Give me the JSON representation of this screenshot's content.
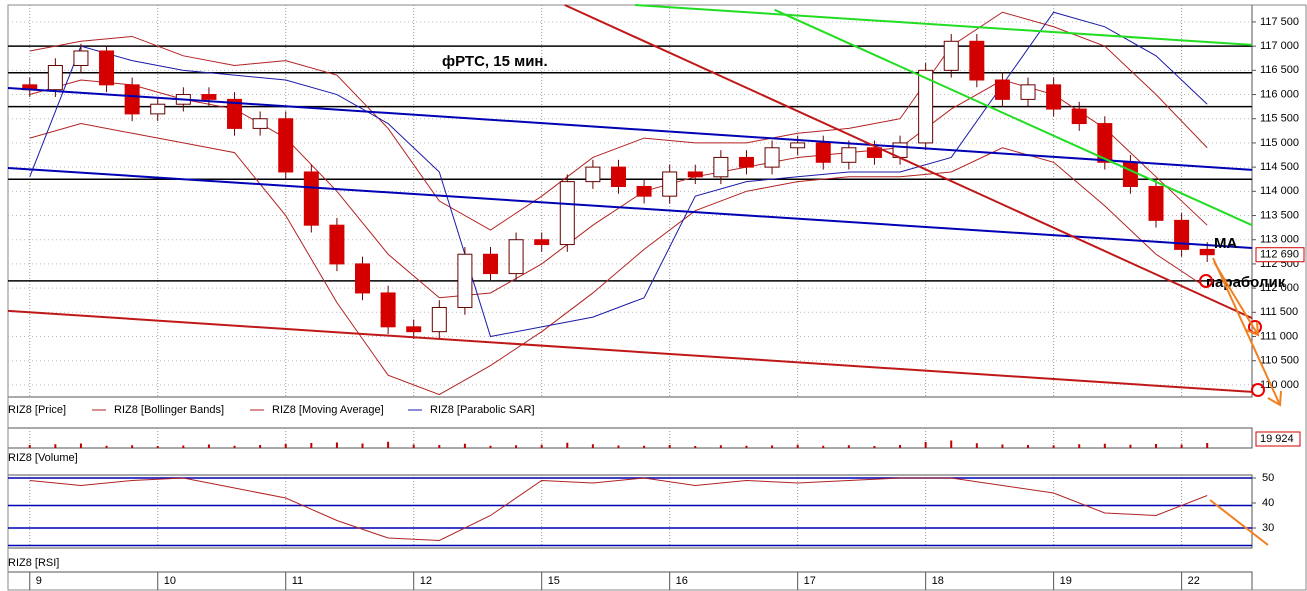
{
  "chart_data": [
    {
      "type": "candlestick",
      "title": "фРТС, 15 мин.",
      "xlim": [
        -0.17,
        9.55
      ],
      "xticks": [
        {
          "value": 0,
          "label": "9"
        },
        {
          "value": 1,
          "label": "10"
        },
        {
          "value": 2,
          "label": "11"
        },
        {
          "value": 3,
          "label": "12"
        },
        {
          "value": 4,
          "label": "15"
        },
        {
          "value": 5,
          "label": "16"
        },
        {
          "value": 6,
          "label": "17"
        },
        {
          "value": 7,
          "label": "18"
        },
        {
          "value": 8,
          "label": "19"
        },
        {
          "value": 9,
          "label": "22"
        }
      ],
      "ylim": [
        109750,
        117850
      ],
      "yticks": [
        {
          "value": 110000,
          "label": "110 000"
        },
        {
          "value": 110500,
          "label": "110 500"
        },
        {
          "value": 111000,
          "label": "111 000"
        },
        {
          "value": 111500,
          "label": "111 500"
        },
        {
          "value": 112000,
          "label": "112 000"
        },
        {
          "value": 112500,
          "label": "112 500"
        },
        {
          "value": 113000,
          "label": "113 000"
        },
        {
          "value": 113500,
          "label": "113 500"
        },
        {
          "value": 114000,
          "label": "114 000"
        },
        {
          "value": 114500,
          "label": "114 500"
        },
        {
          "value": 115000,
          "label": "115 000"
        },
        {
          "value": 115500,
          "label": "115 500"
        },
        {
          "value": 116000,
          "label": "116 000"
        },
        {
          "value": 116500,
          "label": "116 500"
        },
        {
          "value": 117000,
          "label": "117 000"
        },
        {
          "value": 117500,
          "label": "117 500"
        }
      ],
      "grid": true,
      "series": [
        {
          "name": "RIZ8 [Price]",
          "up_color": "#ffffff",
          "down_color": "#d40000",
          "x": [
            0,
            0.2,
            0.4,
            0.6,
            0.8,
            1,
            1.2,
            1.4,
            1.6,
            1.8,
            2,
            2.2,
            2.4,
            2.6,
            2.8,
            3,
            3.2,
            3.4,
            3.6,
            3.8,
            4,
            4.2,
            4.4,
            4.6,
            4.8,
            5,
            5.2,
            5.4,
            5.6,
            5.8,
            6,
            6.2,
            6.4,
            6.6,
            6.8,
            7,
            7.2,
            7.4,
            7.6,
            7.8,
            8,
            8.2,
            8.4,
            8.6,
            8.8,
            9,
            9.2
          ],
          "open": [
            116200,
            116100,
            116600,
            116900,
            116200,
            115600,
            115800,
            116000,
            115900,
            115300,
            115500,
            114400,
            113300,
            112500,
            111900,
            111200,
            111100,
            111600,
            112700,
            112300,
            113000,
            112900,
            114200,
            114500,
            114100,
            113900,
            114400,
            114300,
            114700,
            114500,
            114900,
            115000,
            114600,
            114900,
            114700,
            115000,
            116500,
            117100,
            116300,
            115900,
            116200,
            115700,
            115400,
            114600,
            114100,
            113400,
            112800
          ],
          "high": [
            116350,
            116750,
            117050,
            117000,
            116350,
            115950,
            116150,
            116150,
            116050,
            115650,
            115650,
            114550,
            113450,
            112650,
            112050,
            111350,
            111750,
            112850,
            112850,
            113150,
            113150,
            114350,
            114650,
            114650,
            114250,
            114550,
            114550,
            114850,
            114850,
            115050,
            115150,
            115150,
            115050,
            115050,
            115150,
            116650,
            117250,
            117250,
            116450,
            116350,
            116350,
            115850,
            115550,
            114750,
            114250,
            113550,
            112950
          ],
          "low": [
            115950,
            115950,
            116450,
            116050,
            115450,
            115450,
            115650,
            115750,
            115150,
            115150,
            114250,
            113150,
            112350,
            111750,
            111050,
            110950,
            110950,
            111450,
            112150,
            112150,
            112750,
            112750,
            114050,
            113950,
            113750,
            113750,
            114150,
            114150,
            114350,
            114350,
            114750,
            114450,
            114450,
            114550,
            114550,
            114850,
            116350,
            116150,
            115750,
            115750,
            115550,
            115250,
            114450,
            113950,
            113250,
            112650,
            112540
          ],
          "close": [
            116100,
            116600,
            116900,
            116200,
            115600,
            115800,
            116000,
            115900,
            115300,
            115500,
            114400,
            113300,
            112500,
            111900,
            111200,
            111100,
            111600,
            112700,
            112300,
            113000,
            112900,
            114200,
            114500,
            114100,
            113900,
            114400,
            114300,
            114700,
            114500,
            114900,
            115000,
            114600,
            114900,
            114700,
            115000,
            116500,
            117100,
            116300,
            115900,
            116200,
            115700,
            115400,
            114600,
            114100,
            113400,
            112800,
            112690
          ],
          "close_labels": [
            null,
            null,
            null,
            null,
            null,
            null,
            null,
            null,
            null,
            null,
            null,
            null,
            null,
            null,
            null,
            null,
            null,
            null,
            null,
            null,
            null,
            null,
            null,
            null,
            null,
            null,
            null,
            null,
            null,
            null,
            null,
            null,
            null,
            null,
            null,
            null,
            null,
            null,
            null,
            null,
            null,
            null,
            null,
            null,
            null,
            null,
            "112 690"
          ]
        },
        {
          "name": "RIZ8 [Bollinger Bands]",
          "color": "#b22222",
          "x": [
            0,
            0.4,
            0.8,
            1.2,
            1.6,
            2,
            2.4,
            2.8,
            3.2,
            3.6,
            4,
            4.4,
            4.8,
            5.2,
            5.6,
            6,
            6.4,
            6.8,
            7.2,
            7.6,
            8,
            8.4,
            8.8,
            9.2
          ],
          "upper": [
            116900,
            117100,
            117200,
            116800,
            116600,
            116700,
            116400,
            115300,
            113800,
            113200,
            113900,
            114700,
            115100,
            115000,
            115000,
            115200,
            115300,
            115500,
            117000,
            117700,
            117400,
            117000,
            116000,
            114900
          ],
          "lower": [
            115100,
            115400,
            115200,
            115000,
            114800,
            113500,
            111700,
            110200,
            109800,
            110400,
            111100,
            111900,
            112800,
            113600,
            114000,
            114200,
            114300,
            114300,
            114400,
            114900,
            114600,
            113700,
            112700,
            112000
          ]
        },
        {
          "name": "RIZ8 [Moving Average]",
          "color": "#b22222",
          "x": [
            0,
            0.4,
            0.8,
            1.2,
            1.6,
            2,
            2.4,
            2.8,
            3.2,
            3.6,
            4,
            4.4,
            4.8,
            5.2,
            5.6,
            6,
            6.4,
            6.8,
            7.2,
            7.6,
            8,
            8.4,
            8.8,
            9.2
          ],
          "values": [
            116000,
            116300,
            116200,
            115900,
            115700,
            115100,
            114000,
            112700,
            111800,
            111900,
            112500,
            113300,
            114000,
            114300,
            114500,
            114700,
            114800,
            114900,
            115700,
            116300,
            116000,
            115300,
            114300,
            113300
          ]
        },
        {
          "name": "RIZ8 [Parabolic SAR]",
          "color": "#1a1aa8",
          "x": [
            0,
            0.4,
            0.8,
            1.2,
            1.6,
            2,
            2.4,
            2.8,
            3.2,
            3.6,
            4,
            4.4,
            4.8,
            5.2,
            5.6,
            6,
            6.4,
            6.8,
            7.2,
            7.6,
            8,
            8.4,
            8.8,
            9.2
          ],
          "values": [
            114300,
            117000,
            116700,
            116500,
            116400,
            116300,
            116000,
            115400,
            114400,
            111000,
            111200,
            111400,
            111800,
            113900,
            114200,
            114300,
            114400,
            114400,
            114700,
            116200,
            117700,
            117400,
            116800,
            115800
          ]
        }
      ],
      "levels": [
        117000,
        116450,
        115750,
        114250,
        112150
      ],
      "level_color": "#000000",
      "trendlines": [
        {
          "color": "#0000b4",
          "x": [
            -0.17,
            9.55
          ],
          "y": [
            116136,
            114442
          ]
        },
        {
          "color": "#0000b4",
          "x": [
            -0.17,
            9.55
          ],
          "y": [
            114483,
            112830
          ]
        },
        {
          "color": "#c01818",
          "x": [
            4.18,
            9.55
          ],
          "y": [
            117850,
            111380
          ]
        },
        {
          "color": "#c01818",
          "x": [
            -0.17,
            9.55
          ],
          "y": [
            111530,
            109855
          ]
        },
        {
          "color": "#22dd22",
          "x": [
            4.73,
            9.55
          ],
          "y": [
            117850,
            117025
          ]
        },
        {
          "color": "#22dd22",
          "x": [
            5.82,
            9.55
          ],
          "y": [
            117750,
            113300
          ]
        }
      ],
      "annotations": [
        "МА",
        "параболик"
      ]
    },
    {
      "type": "bar",
      "ylim": [
        0,
        80000
      ],
      "series": [
        {
          "name": "RIZ8 [Volume]",
          "color": "#c00000",
          "x": [
            0,
            0.2,
            0.4,
            0.6,
            0.8,
            1,
            1.2,
            1.4,
            1.6,
            1.8,
            2,
            2.2,
            2.4,
            2.6,
            2.8,
            3,
            3.2,
            3.4,
            3.6,
            3.8,
            4,
            4.2,
            4.4,
            4.6,
            4.8,
            5,
            5.2,
            5.4,
            5.6,
            5.8,
            6,
            6.2,
            6.4,
            6.6,
            6.8,
            7,
            7.2,
            7.4,
            7.6,
            7.8,
            8,
            8.2,
            8.4,
            8.6,
            8.8,
            9,
            9.2
          ],
          "values": [
            12000,
            15000,
            18000,
            9000,
            11000,
            8000,
            10000,
            14000,
            9000,
            12000,
            16000,
            20000,
            22000,
            18000,
            25000,
            14000,
            12000,
            17000,
            9000,
            11000,
            13000,
            21000,
            15000,
            10000,
            9000,
            12000,
            8000,
            11000,
            9000,
            10000,
            13000,
            9000,
            11000,
            8000,
            12000,
            24000,
            30000,
            19000,
            14000,
            12000,
            11000,
            15000,
            17000,
            13000,
            16000,
            14000,
            19924
          ],
          "value_labels": [
            null,
            null,
            null,
            null,
            null,
            null,
            null,
            null,
            null,
            null,
            null,
            null,
            null,
            null,
            null,
            null,
            null,
            null,
            null,
            null,
            null,
            null,
            null,
            null,
            null,
            null,
            null,
            null,
            null,
            null,
            null,
            null,
            null,
            null,
            null,
            null,
            null,
            null,
            null,
            null,
            null,
            null,
            null,
            null,
            null,
            null,
            "19 924"
          ]
        }
      ]
    },
    {
      "type": "line",
      "ylim": [
        22,
        51.2
      ],
      "yticks": [
        30,
        40,
        50
      ],
      "levels": [
        50,
        39,
        30,
        23
      ],
      "level_color": "#0000b4",
      "series": [
        {
          "name": "RIZ8 [RSI]",
          "color": "#b22222",
          "x": [
            0,
            0.4,
            0.8,
            1.2,
            1.6,
            2,
            2.4,
            2.8,
            3.2,
            3.6,
            4,
            4.4,
            4.8,
            5.2,
            5.6,
            6,
            6.4,
            6.8,
            7.2,
            7.6,
            8,
            8.4,
            8.8,
            9.2
          ],
          "values": [
            49,
            47,
            49,
            50,
            46,
            42,
            33,
            26,
            25,
            35,
            49,
            48,
            50,
            47,
            49,
            48,
            49,
            50,
            50,
            47,
            44,
            36,
            35,
            43
          ]
        }
      ]
    }
  ]
}
